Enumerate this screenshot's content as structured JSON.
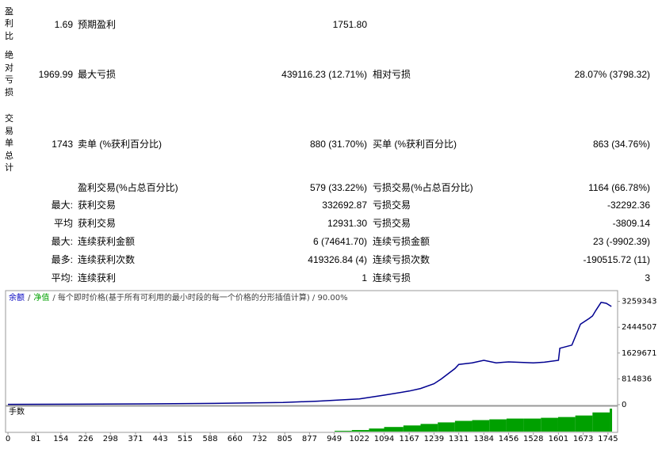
{
  "report": {
    "rows": [
      {
        "group": "盈利比",
        "lead": "1.69",
        "cells": [
          {
            "name": "预期盈利",
            "value": "1751.80"
          }
        ]
      },
      {
        "group": "绝对亏损",
        "lead": "1969.99",
        "cells": [
          {
            "name": "最大亏损",
            "value": "439116.23 (12.71%)"
          },
          {
            "name": "相对亏损",
            "value": "28.07% (3798.32)"
          }
        ]
      },
      {
        "group": "交易单总计",
        "lead": "1743",
        "cells": [
          {
            "name": "卖单 (%获利百分比)",
            "value": "880 (31.70%)"
          },
          {
            "name": "买单 (%获利百分比)",
            "value": "863 (34.76%)"
          }
        ]
      },
      {
        "cells": [
          {
            "name": "盈利交易(%占总百分比)",
            "value": "579 (33.22%)"
          },
          {
            "name": "亏损交易(%占总百分比)",
            "value": "1164 (66.78%)"
          }
        ]
      },
      {
        "lead": "最大:",
        "cells": [
          {
            "name": "获利交易",
            "value": "332692.87"
          },
          {
            "name": "亏损交易",
            "value": "-32292.36"
          }
        ]
      },
      {
        "lead": "平均",
        "cells": [
          {
            "name": "获利交易",
            "value": "12931.30"
          },
          {
            "name": "亏损交易",
            "value": "-3809.14"
          }
        ]
      },
      {
        "lead": "最大:",
        "cells": [
          {
            "name": "连续获利金额",
            "value": "6 (74641.70)"
          },
          {
            "name": "连续亏损金额",
            "value": "23 (-9902.39)"
          }
        ]
      },
      {
        "lead": "最多:",
        "cells": [
          {
            "name": "连续获利次数",
            "value": "419326.84 (4)"
          },
          {
            "name": "连续亏损次数",
            "value": "-190515.72 (11)"
          }
        ]
      },
      {
        "lead": "平均:",
        "cells": [
          {
            "name": "连续获利",
            "value": "1"
          },
          {
            "name": "连续亏损",
            "value": "3"
          }
        ]
      }
    ]
  },
  "chart_data": {
    "type": "line",
    "legend": [
      {
        "text": "余额",
        "color": "#0000c0"
      },
      {
        "text": "/",
        "color": "#404040"
      },
      {
        "text": "净值",
        "color": "#00a000"
      },
      {
        "text": "/ 每个即时价格(基于所有可利用的最小时段的每一个价格的分形插值计算) / 90.00%",
        "color": "#404040"
      }
    ],
    "series": [
      {
        "name": "余额",
        "color": "#000090",
        "x": [
          0,
          200,
          400,
          600,
          800,
          900,
          1022,
          1094,
          1167,
          1200,
          1239,
          1260,
          1300,
          1311,
          1350,
          1384,
          1420,
          1456,
          1500,
          1528,
          1560,
          1601,
          1605,
          1640,
          1665,
          1690,
          1700,
          1710,
          1725,
          1740,
          1755
        ],
        "values": [
          10000,
          15000,
          25000,
          40000,
          70000,
          110000,
          180000,
          300000,
          430000,
          510000,
          660000,
          810000,
          1140000,
          1270000,
          1320000,
          1400000,
          1320000,
          1350000,
          1330000,
          1320000,
          1340000,
          1400000,
          1780000,
          1880000,
          2540000,
          2720000,
          2800000,
          2980000,
          3230000,
          3200000,
          3100000
        ]
      }
    ],
    "xlim": [
      -7,
      1773
    ],
    "ylim": [
      0,
      3600000
    ],
    "xticks": [
      0,
      81,
      154,
      226,
      298,
      371,
      443,
      515,
      588,
      660,
      732,
      805,
      877,
      949,
      1022,
      1094,
      1167,
      1239,
      1311,
      1384,
      1456,
      1528,
      1601,
      1673,
      1745
    ],
    "yticks": [
      0,
      814836,
      1629671,
      2444507,
      3259343
    ],
    "volume": {
      "label": "手数",
      "color": "#00a000",
      "x": [
        950,
        1000,
        1050,
        1094,
        1150,
        1200,
        1250,
        1300,
        1350,
        1400,
        1450,
        1500,
        1550,
        1600,
        1650,
        1700,
        1750
      ],
      "values": [
        1,
        2,
        4,
        6,
        8,
        10,
        12,
        14,
        15,
        16,
        17,
        17,
        18,
        19,
        21,
        25,
        30
      ]
    }
  }
}
